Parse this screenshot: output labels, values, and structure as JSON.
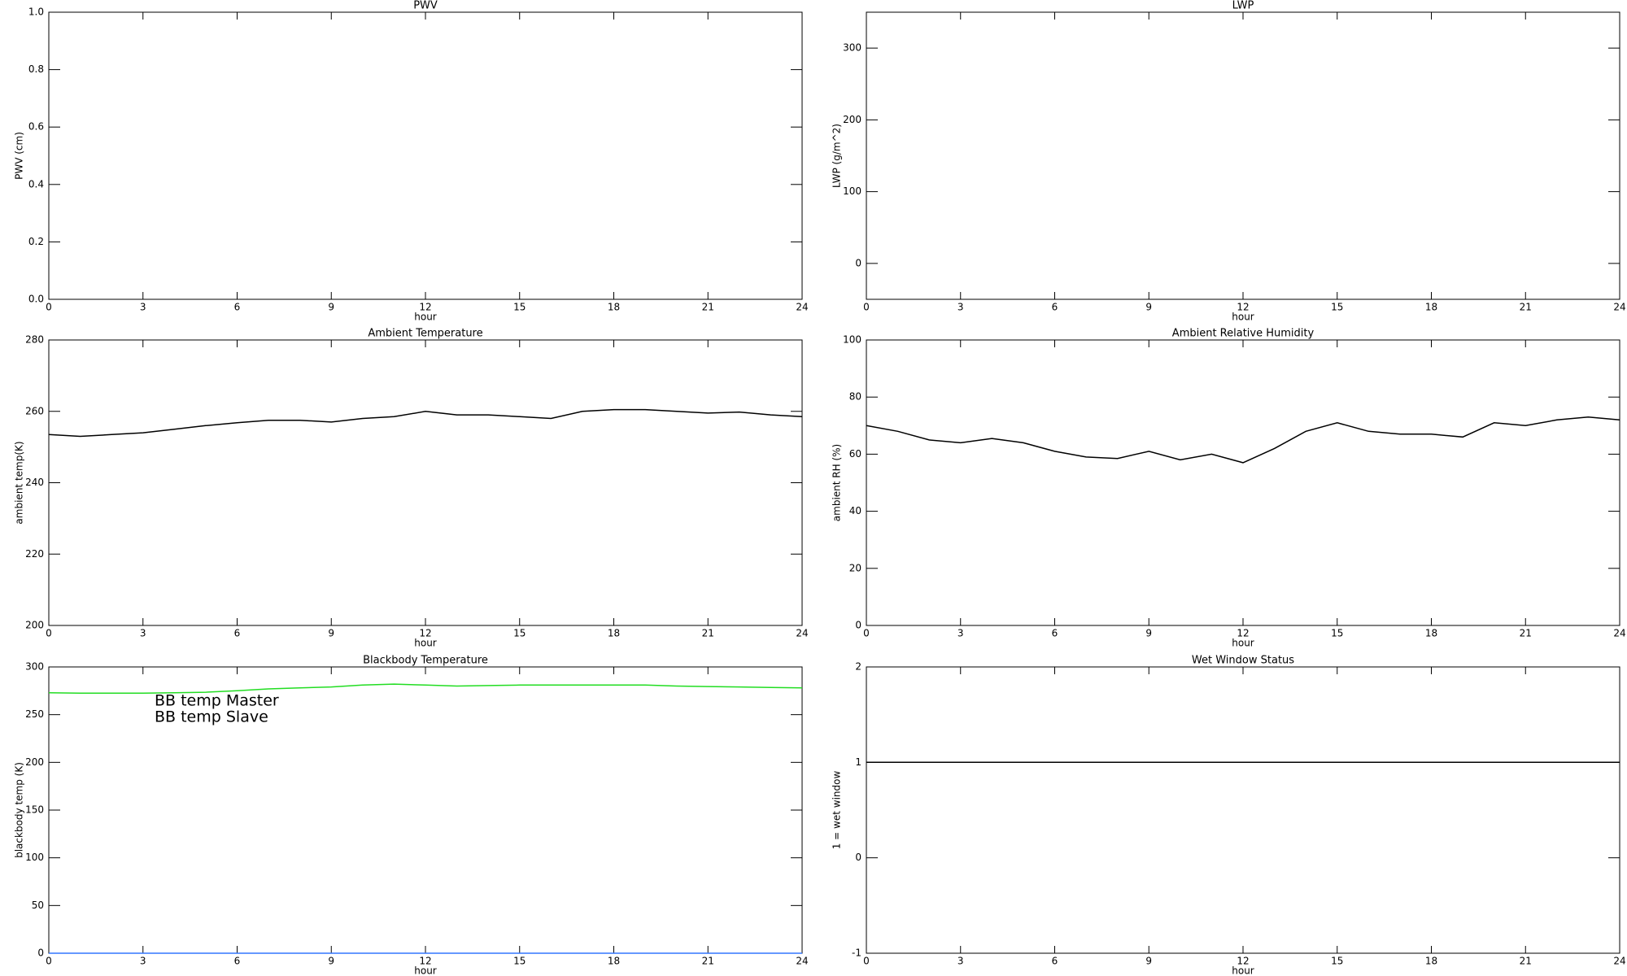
{
  "chart_data": [
    {
      "type": "line",
      "title": "PWV",
      "xlabel": "hour",
      "ylabel": "PWV (cm)",
      "xlim": [
        0,
        24
      ],
      "xticks": [
        0,
        3,
        6,
        9,
        12,
        15,
        18,
        21,
        24
      ],
      "ylim": [
        0,
        1
      ],
      "yticks": [
        {
          "value": 0,
          "label": "0.0"
        },
        0.2,
        0.4,
        0.6,
        0.8,
        {
          "value": 1,
          "label": "1.0"
        }
      ],
      "x": [],
      "series": []
    },
    {
      "type": "line",
      "title": "LWP",
      "xlabel": "hour",
      "ylabel": "LWP (g/m^2)",
      "xlim": [
        0,
        24
      ],
      "xticks": [
        0,
        3,
        6,
        9,
        12,
        15,
        18,
        21,
        24
      ],
      "ylim": [
        -50,
        350
      ],
      "yticks": [
        0,
        100,
        200,
        300
      ],
      "x": [],
      "series": []
    },
    {
      "type": "line",
      "title": "Ambient Temperature",
      "xlabel": "hour",
      "ylabel": "ambient temp(K)",
      "xlim": [
        0,
        24
      ],
      "xticks": [
        0,
        3,
        6,
        9,
        12,
        15,
        18,
        21,
        24
      ],
      "ylim": [
        200,
        280
      ],
      "yticks": [
        200,
        220,
        240,
        260,
        280
      ],
      "x": [
        0,
        1,
        2,
        3,
        4,
        5,
        6,
        7,
        8,
        9,
        10,
        11,
        12,
        13,
        14,
        15,
        16,
        17,
        18,
        19,
        20,
        21,
        22,
        23,
        24
      ],
      "series": [
        {
          "color": "#000000",
          "values": [
            253.5,
            253,
            253.5,
            254,
            255,
            256,
            256.8,
            257.5,
            257.5,
            257,
            258,
            258.5,
            260,
            259,
            259,
            258.5,
            258,
            260,
            260.5,
            260.5,
            260,
            259.5,
            259.8,
            259,
            258.5
          ]
        }
      ]
    },
    {
      "type": "line",
      "title": "Ambient Relative Humidity",
      "xlabel": "hour",
      "ylabel": "ambient RH (%)",
      "xlim": [
        0,
        24
      ],
      "xticks": [
        0,
        3,
        6,
        9,
        12,
        15,
        18,
        21,
        24
      ],
      "ylim": [
        0,
        100
      ],
      "yticks": [
        0,
        20,
        40,
        60,
        80,
        100
      ],
      "x": [
        0,
        1,
        2,
        3,
        4,
        5,
        6,
        7,
        8,
        9,
        10,
        11,
        12,
        13,
        14,
        15,
        16,
        17,
        18,
        19,
        20,
        21,
        22,
        23,
        24
      ],
      "series": [
        {
          "color": "#000000",
          "values": [
            70,
            68,
            65,
            64,
            65.5,
            64,
            61,
            59,
            58.5,
            61,
            58,
            60,
            57,
            62,
            68,
            71,
            68,
            67,
            67,
            66,
            71,
            70,
            72,
            73,
            72
          ]
        }
      ]
    },
    {
      "type": "line",
      "title": "Blackbody Temperature",
      "xlabel": "hour",
      "ylabel": "blackbody temp (K)",
      "xlim": [
        0,
        24
      ],
      "xticks": [
        0,
        3,
        6,
        9,
        12,
        15,
        18,
        21,
        24
      ],
      "ylim": [
        0,
        300
      ],
      "yticks": [
        0,
        50,
        100,
        150,
        200,
        250,
        300
      ],
      "legend": "upper left",
      "x": [
        0,
        1,
        2,
        3,
        4,
        5,
        6,
        7,
        8,
        9,
        10,
        11,
        12,
        13,
        14,
        15,
        16,
        17,
        18,
        19,
        20,
        21,
        22,
        23,
        24
      ],
      "series": [
        {
          "name": "BB temp Master",
          "color": "#3377ff",
          "values": [
            0,
            0,
            0,
            0,
            0,
            0,
            0,
            0,
            0,
            0,
            0,
            0,
            0,
            0,
            0,
            0,
            0,
            0,
            0,
            0,
            0,
            0,
            0,
            0,
            0
          ]
        },
        {
          "name": "BB temp Slave",
          "color": "#22dd22",
          "values": [
            273,
            272.5,
            272.5,
            272.5,
            273,
            273.5,
            275,
            277,
            278,
            279,
            281,
            282,
            281,
            280,
            280.5,
            281,
            281,
            281,
            281,
            281,
            280,
            279.5,
            279,
            278.5,
            278
          ]
        }
      ]
    },
    {
      "type": "line",
      "title": "Wet Window Status",
      "xlabel": "hour",
      "ylabel": "1 = wet window",
      "xlim": [
        0,
        24
      ],
      "xticks": [
        0,
        3,
        6,
        9,
        12,
        15,
        18,
        21,
        24
      ],
      "ylim": [
        -1,
        2
      ],
      "yticks": [
        -1,
        0,
        1,
        2
      ],
      "x": [
        0,
        24
      ],
      "series": [
        {
          "color": "#000000",
          "values": [
            1,
            1
          ]
        }
      ]
    }
  ]
}
